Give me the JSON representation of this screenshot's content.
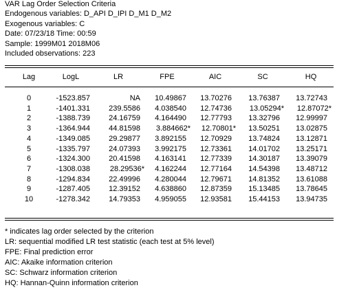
{
  "header": {
    "lines": [
      "VAR Lag Order Selection Criteria",
      "Endogenous variables: D_API D_IPI D_M1 D_M2",
      "Exogenous variables: C",
      "Date: 07/23/18   Time: 00:59",
      "Sample: 1999M01 2018M06",
      "Included observations: 223"
    ]
  },
  "table": {
    "columns": [
      "Lag",
      "LogL",
      "LR",
      "FPE",
      "AIC",
      "SC",
      "HQ"
    ],
    "rows": [
      [
        "0",
        "-1523.857",
        "NA",
        "10.49867",
        "13.70276",
        "13.76387",
        "13.72743"
      ],
      [
        "1",
        "-1401.331",
        "239.5586",
        "4.038540",
        "12.74736",
        "13.05294*",
        "12.87072*"
      ],
      [
        "2",
        "-1388.739",
        "24.16759",
        "4.164490",
        "12.77793",
        "13.32796",
        "12.99997"
      ],
      [
        "3",
        "-1364.944",
        "44.81598",
        "3.884662*",
        "12.70801*",
        "13.50251",
        "13.02875"
      ],
      [
        "4",
        "-1349.085",
        "29.29877",
        "3.892155",
        "12.70929",
        "13.74824",
        "13.12871"
      ],
      [
        "5",
        "-1335.797",
        "24.07393",
        "3.992175",
        "12.73361",
        "14.01702",
        "13.25171"
      ],
      [
        "6",
        "-1324.300",
        "20.41598",
        "4.163141",
        "12.77339",
        "14.30187",
        "13.39079"
      ],
      [
        "7",
        "-1308.038",
        "28.29536*",
        "4.162244",
        "12.77164",
        "14.54398",
        "13.48712"
      ],
      [
        "8",
        "-1294.834",
        "22.49996",
        "4.280044",
        "12.79671",
        "14.81352",
        "13.61088"
      ],
      [
        "9",
        "-1287.405",
        "12.39152",
        "4.638860",
        "12.87359",
        "15.13485",
        "13.78645"
      ],
      [
        "10",
        "-1278.342",
        "14.79353",
        "4.959055",
        "12.93581",
        "15.44153",
        "13.94735"
      ]
    ]
  },
  "notes": [
    "* indicates lag order selected by the criterion",
    "LR: sequential modified LR test statistic (each test at 5% level)",
    "FPE: Final prediction error",
    "AIC: Akaike information criterion",
    "SC: Schwarz information criterion",
    "HQ: Hannan-Quinn information criterion"
  ]
}
